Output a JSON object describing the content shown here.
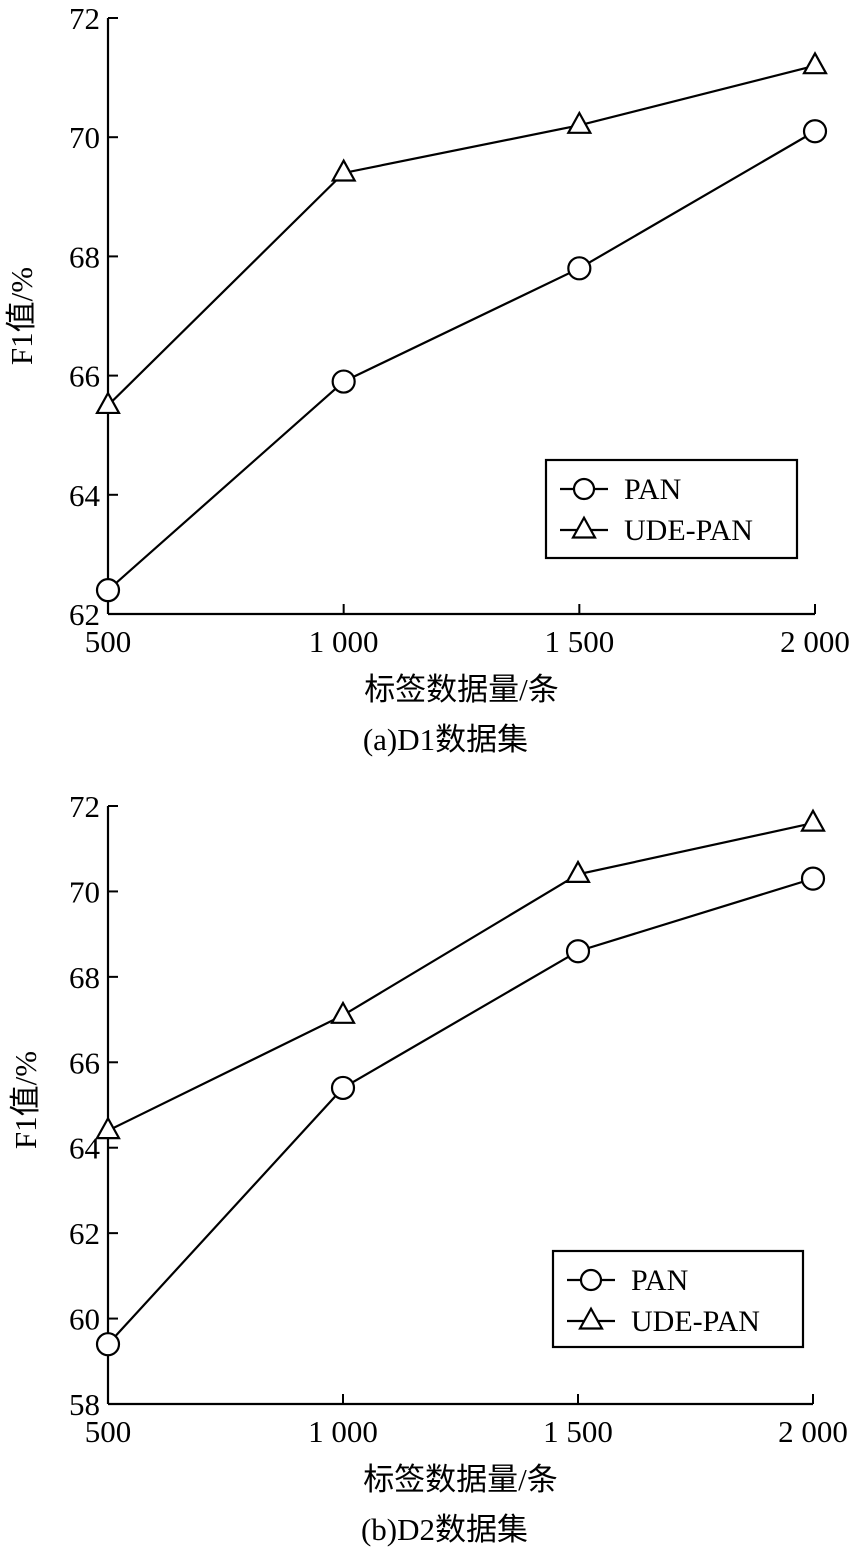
{
  "chart_data": [
    {
      "type": "line",
      "caption": "(a)D1数据集",
      "xlabel": "标签数据量/条",
      "ylabel": "F1值/%",
      "x": [
        500,
        1000,
        1500,
        2000
      ],
      "x_tick_labels": [
        "500",
        "1 000",
        "1 500",
        "2 000"
      ],
      "ylim": [
        62,
        72
      ],
      "y_ticks": [
        62,
        64,
        66,
        68,
        70,
        72
      ],
      "y_tick_labels": [
        "62",
        "64",
        "66",
        "68",
        "70",
        "72"
      ],
      "legend_position": "bottom-right",
      "series": [
        {
          "name": "PAN",
          "marker": "circle",
          "values": [
            62.4,
            65.9,
            67.8,
            70.1
          ]
        },
        {
          "name": "UDE-PAN",
          "marker": "triangle",
          "values": [
            65.5,
            69.4,
            70.2,
            71.2
          ]
        }
      ]
    },
    {
      "type": "line",
      "caption": "(b)D2数据集",
      "xlabel": "标签数据量/条",
      "ylabel": "F1值/%",
      "x": [
        500,
        1000,
        1500,
        2000
      ],
      "x_tick_labels": [
        "500",
        "1 000",
        "1 500",
        "2 000"
      ],
      "ylim": [
        58,
        72
      ],
      "y_ticks": [
        58,
        60,
        62,
        64,
        66,
        68,
        70,
        72
      ],
      "y_tick_labels": [
        "58",
        "60",
        "62",
        "64",
        "66",
        "68",
        "70",
        "72"
      ],
      "legend_position": "bottom-right",
      "series": [
        {
          "name": "PAN",
          "marker": "circle",
          "values": [
            59.4,
            65.4,
            68.6,
            70.3
          ]
        },
        {
          "name": "UDE-PAN",
          "marker": "triangle",
          "values": [
            64.4,
            67.1,
            70.4,
            71.6
          ]
        }
      ]
    }
  ]
}
